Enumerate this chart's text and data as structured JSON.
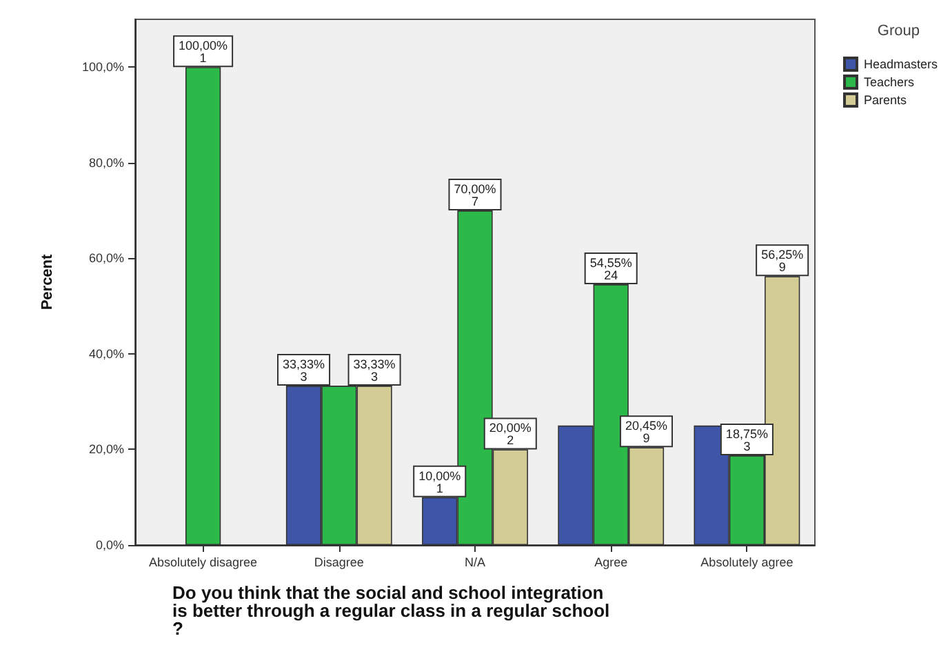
{
  "chart_data": {
    "type": "bar",
    "xlabel": "Do you think that the social and school integration is better through a regular class in a regular school?",
    "ylabel": "Percent",
    "legend_title": "Group",
    "categories": [
      "Absolutely disagree",
      "Disagree",
      "N/A",
      "Agree",
      "Absolutely agree"
    ],
    "series": [
      {
        "name": "Headmasters",
        "color": "#3f56a8",
        "values": [
          null,
          33.33,
          10,
          25,
          25
        ],
        "value_labels": [
          null,
          "33,33%\n3",
          "10,00%\n1",
          null,
          null
        ]
      },
      {
        "name": "Teachers",
        "color": "#2db84a",
        "values": [
          100,
          33.33,
          70,
          54.55,
          18.75
        ],
        "value_labels": [
          "100,00%\n1",
          null,
          "70,00%\n7",
          "54,55%\n24",
          "18,75%\n3"
        ]
      },
      {
        "name": "Parents",
        "color": "#d3cd95",
        "values": [
          null,
          33.33,
          20,
          20.45,
          56.25
        ],
        "value_labels": [
          null,
          "33,33%\n3",
          "20,00%\n2",
          "20,45%\n9",
          "56,25%\n9"
        ]
      }
    ],
    "ylim": [
      0,
      110
    ],
    "yticks": [
      {
        "value": 0,
        "label": "0,0%"
      },
      {
        "value": 20,
        "label": "20,0%"
      },
      {
        "value": 40,
        "label": "40,0%"
      },
      {
        "value": 60,
        "label": "60,0%"
      },
      {
        "value": 80,
        "label": "80,0%"
      },
      {
        "value": 100,
        "label": "100,0%"
      }
    ],
    "grid": false,
    "legend": "top right"
  }
}
